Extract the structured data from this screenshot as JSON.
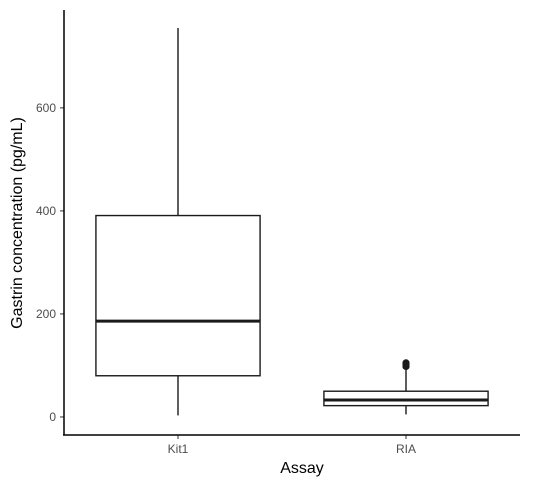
{
  "chart_data": {
    "type": "boxplot",
    "title": "",
    "xlabel": "Assay",
    "ylabel": "Gastrin concentration (pg/mL)",
    "ylim": [
      -35,
      790
    ],
    "yticks": [
      0,
      200,
      400,
      600
    ],
    "grid": false,
    "legend": "none",
    "categories": [
      "Kit1",
      "RIA"
    ],
    "boxes": [
      {
        "category": "Kit1",
        "whisker_low": 3,
        "q1": 80,
        "median": 186,
        "q3": 391,
        "whisker_high": 755,
        "outliers": []
      },
      {
        "category": "RIA",
        "whisker_low": 5,
        "q1": 22,
        "median": 33,
        "q3": 50,
        "whisker_high": 92,
        "outliers": [
          98,
          102,
          105
        ]
      }
    ],
    "colors": {
      "box_fill": "#ffffff",
      "box_stroke": "#1a1a1a",
      "axis": "#000000",
      "tick_text": "#4d4d4d"
    }
  }
}
